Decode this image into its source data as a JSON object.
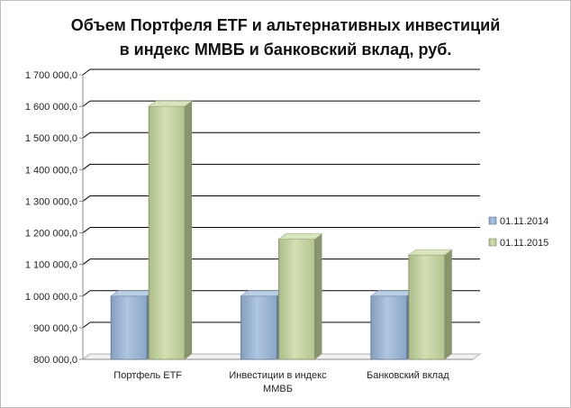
{
  "chart_data": {
    "type": "bar",
    "title": "Объем Портфеля ETF и альтернативных  инвестиций\nв индекс ММВБ и банковский  вклад,  руб.",
    "categories": [
      [
        "Портфель ETF"
      ],
      [
        "Инвестиции в индекс",
        "ММВБ"
      ],
      [
        "Банковский вклад"
      ]
    ],
    "series": [
      {
        "name": "01.11.2014",
        "values": [
          1000000,
          1000000,
          1000000
        ],
        "color": "#95b3d7"
      },
      {
        "name": "01.11.2015",
        "values": [
          1600000,
          1180000,
          1130000
        ],
        "color": "#c3d69b"
      }
    ],
    "ylim": [
      800000,
      1700000
    ],
    "yticks": [
      {
        "value": 800000,
        "label": "800 000,0"
      },
      {
        "value": 900000,
        "label": "900 000,0"
      },
      {
        "value": 1000000,
        "label": "1 000 000,0"
      },
      {
        "value": 1100000,
        "label": "1 100 000,0"
      },
      {
        "value": 1200000,
        "label": "1 200 000,0"
      },
      {
        "value": 1300000,
        "label": "1 300 000,0"
      },
      {
        "value": 1400000,
        "label": "1 400 000,0"
      },
      {
        "value": 1500000,
        "label": "1 500 000,0"
      },
      {
        "value": 1600000,
        "label": "1 600 000,0"
      },
      {
        "value": 1700000,
        "label": "1 700 000,0"
      }
    ],
    "grid": true,
    "legend": "right",
    "three_d": true
  }
}
